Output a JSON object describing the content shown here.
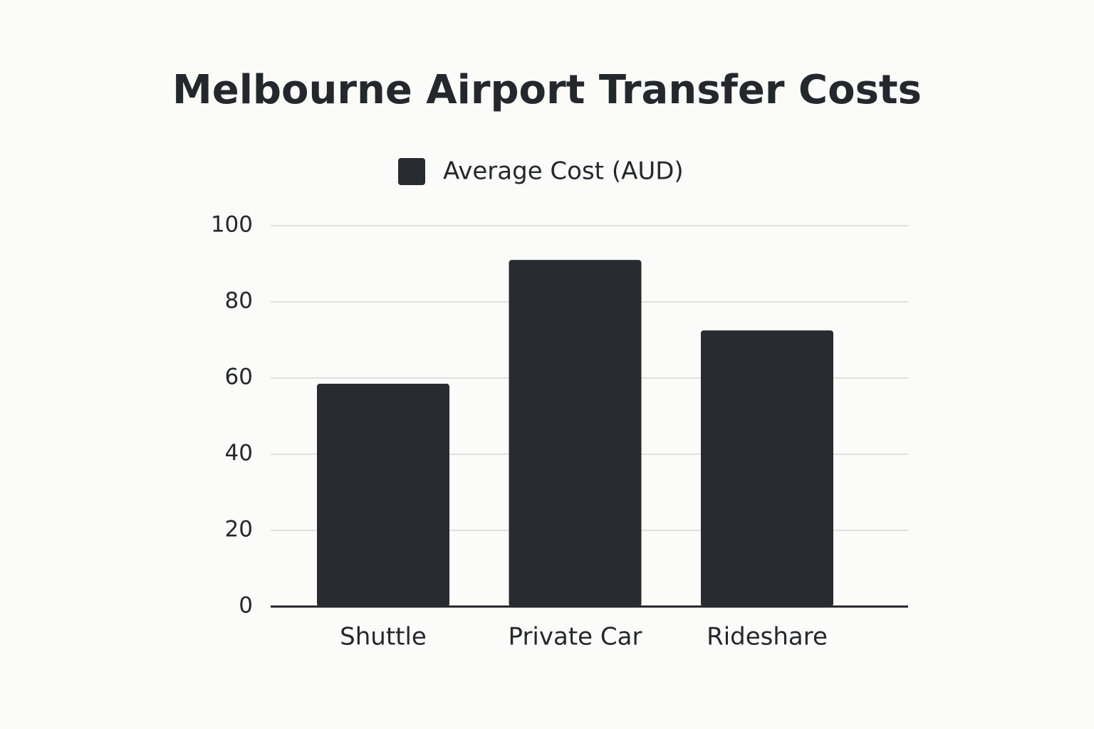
{
  "chart_data": {
    "type": "bar",
    "title": "Melbourne Airport Transfer Costs",
    "categories": [
      "Shuttle",
      "Private Car",
      "Rideshare"
    ],
    "series": [
      {
        "name": "Average Cost (AUD)",
        "color": "#282c30",
        "values": [
          58.5,
          91,
          72.5
        ]
      }
    ],
    "ylim": [
      0,
      100
    ],
    "yticks": [
      0,
      20,
      40,
      60,
      80,
      100
    ],
    "grid": true,
    "legend": "top"
  }
}
